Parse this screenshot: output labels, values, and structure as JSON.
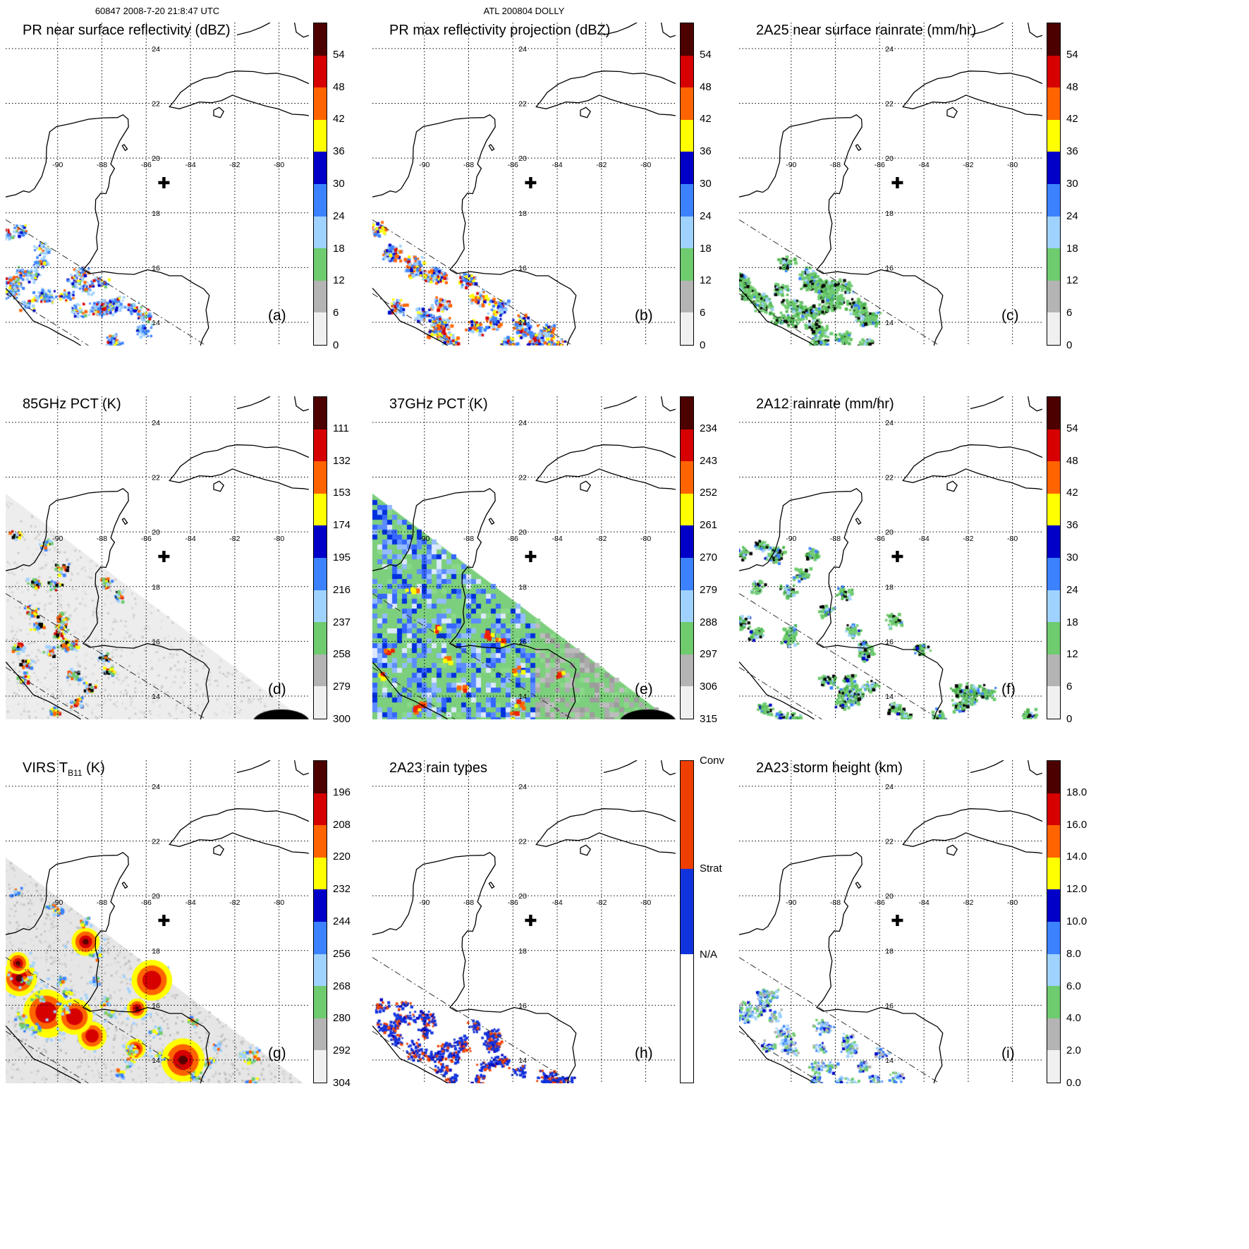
{
  "header": {
    "left_stamp": "60847 2008-7-20 21:8:47 UTC",
    "center_stamp": "ATL 200804 DOLLY"
  },
  "map": {
    "lon_range": [
      -92.35,
      -78.65
    ],
    "lat_range": [
      13.15,
      24.95
    ],
    "lon_labels": [
      "-90",
      "-88",
      "-86",
      "-84",
      "-82",
      "-80"
    ],
    "lon_values": [
      -90,
      -88,
      -86,
      -84,
      -82,
      -80
    ],
    "lat_labels": [
      "24",
      "22",
      "20",
      "18",
      "16",
      "14"
    ],
    "lat_values": [
      24,
      22,
      20,
      18,
      16,
      14
    ],
    "cross_marker": {
      "lon": -85.2,
      "lat": 19.1
    }
  },
  "colors": {
    "scale_top_to_bottom": [
      "#4d0000",
      "#d60000",
      "#ff6400",
      "#ffff00",
      "#0000c8",
      "#3c82ff",
      "#a0d2ff",
      "#6ecb6e",
      "#b4b4b4",
      "#f0f0f0"
    ],
    "conv": "#ee3f00",
    "strat": "#1133dd",
    "na": "#ffffff"
  },
  "panels": [
    {
      "id": "a",
      "field": "pr_ns_reflectivity",
      "letter": "(a)",
      "title": "PR near surface reflectivity (dBZ)",
      "cbar": {
        "type": "scale",
        "labels": [
          "54",
          "48",
          "42",
          "36",
          "30",
          "24",
          "18",
          "12",
          "6",
          "0"
        ]
      }
    },
    {
      "id": "b",
      "field": "pr_max_reflectivity",
      "letter": "(b)",
      "title": "PR max reflectivity projection (dBZ)",
      "cbar": {
        "type": "scale",
        "labels": [
          "54",
          "48",
          "42",
          "36",
          "30",
          "24",
          "18",
          "12",
          "6",
          "0"
        ]
      }
    },
    {
      "id": "c",
      "field": "rainrate_2a25",
      "letter": "(c)",
      "title": "2A25 near surface rainrate (mm/hr)",
      "cbar": {
        "type": "scale",
        "labels": [
          "54",
          "48",
          "42",
          "36",
          "30",
          "24",
          "18",
          "12",
          "6",
          "0"
        ]
      }
    },
    {
      "id": "d",
      "field": "pct85",
      "letter": "(d)",
      "title": "85GHz PCT (K)",
      "cbar": {
        "type": "scale",
        "labels": [
          "111",
          "132",
          "153",
          "174",
          "195",
          "216",
          "237",
          "258",
          "279",
          "300"
        ]
      }
    },
    {
      "id": "e",
      "field": "pct37",
      "letter": "(e)",
      "title": "37GHz PCT (K)",
      "cbar": {
        "type": "scale",
        "labels": [
          "234",
          "243",
          "252",
          "261",
          "270",
          "279",
          "288",
          "297",
          "306",
          "315"
        ]
      }
    },
    {
      "id": "f",
      "field": "rainrate_2a12",
      "letter": "(f)",
      "title": "2A12 rainrate (mm/hr)",
      "cbar": {
        "type": "scale",
        "labels": [
          "54",
          "48",
          "42",
          "36",
          "30",
          "24",
          "18",
          "12",
          "6",
          "0"
        ]
      }
    },
    {
      "id": "g",
      "field": "virs_tb11",
      "letter": "(g)",
      "title_parts": {
        "pre": "VIRS T",
        "sub": "B11",
        "post": " (K)"
      },
      "cbar": {
        "type": "scale",
        "labels": [
          "196",
          "208",
          "220",
          "232",
          "244",
          "256",
          "268",
          "280",
          "292",
          "304"
        ]
      }
    },
    {
      "id": "h",
      "field": "rain_types",
      "letter": "(h)",
      "title": "2A23 rain types",
      "cbar": {
        "type": "ratio",
        "segments": [
          {
            "color": "#ee3f00",
            "to": 0.335
          },
          {
            "color": "#1133dd",
            "to": 0.6
          },
          {
            "color": "#ffffff",
            "to": 1.0
          }
        ],
        "labels": [
          {
            "text": "Conv",
            "at": 0.0
          },
          {
            "text": "Strat",
            "at": 0.335
          },
          {
            "text": "N/A",
            "at": 0.6
          }
        ]
      }
    },
    {
      "id": "i",
      "field": "storm_height",
      "letter": "(i)",
      "title": "2A23 storm height (km)",
      "cbar": {
        "type": "scale",
        "labels": [
          "18.0",
          "16.0",
          "14.0",
          "12.0",
          "10.0",
          "8.0",
          "6.0",
          "4.0",
          "2.0",
          "0.0"
        ]
      }
    }
  ],
  "chart_data": [
    {
      "panel": "a",
      "type": "heatmap",
      "title": "PR near surface reflectivity (dBZ)",
      "units": "dBZ",
      "colorbar_ticks": [
        54,
        48,
        42,
        36,
        30,
        24,
        18,
        12,
        6,
        0
      ],
      "colorbar_colors_top_to_bottom": [
        "#4d0000",
        "#d60000",
        "#ff6400",
        "#ffff00",
        "#0000c8",
        "#3c82ff",
        "#a0d2ff",
        "#6ecb6e",
        "#b4b4b4",
        "#f0f0f0"
      ],
      "coverage": "narrow PR swath, lower-left of map",
      "geo_extent": {
        "lon": [
          -92.35,
          -78.65
        ],
        "lat": [
          13.15,
          24.95
        ]
      },
      "storm_marker": {
        "lon": -85.2,
        "lat": 19.1
      }
    },
    {
      "panel": "b",
      "type": "heatmap",
      "title": "PR max reflectivity projection (dBZ)",
      "units": "dBZ",
      "colorbar_ticks": [
        54,
        48,
        42,
        36,
        30,
        24,
        18,
        12,
        6,
        0
      ],
      "coverage": "narrow PR swath, lower-left of map"
    },
    {
      "panel": "c",
      "type": "heatmap",
      "title": "2A25 near surface rainrate (mm/hr)",
      "units": "mm/hr",
      "colorbar_ticks": [
        54,
        48,
        42,
        36,
        30,
        24,
        18,
        12,
        6,
        0
      ],
      "coverage": "narrow PR swath, mostly 0-12 mm/hr (green) cells with contours"
    },
    {
      "panel": "d",
      "type": "heatmap",
      "title": "85GHz PCT (K)",
      "units": "K",
      "colorbar_ticks": [
        111,
        132,
        153,
        174,
        195,
        216,
        237,
        258,
        279,
        300
      ],
      "value_direction": "values increase downward on colorbar",
      "coverage": "wide TMI swath (light gray background) with scattered cold convective cells on west side"
    },
    {
      "panel": "e",
      "type": "heatmap",
      "title": "37GHz PCT (K)",
      "units": "K",
      "colorbar_ticks": [
        234,
        243,
        252,
        261,
        270,
        279,
        288,
        297,
        306,
        315
      ],
      "value_direction": "values increase downward on colorbar",
      "coverage": "wide TMI swath filled: green ~288 K with blue (cooler) mottling and few yellow/red cold cores"
    },
    {
      "panel": "f",
      "type": "heatmap",
      "title": "2A12 rainrate (mm/hr)",
      "units": "mm/hr",
      "colorbar_ticks": [
        54,
        48,
        42,
        36,
        30,
        24,
        18,
        12,
        6,
        0
      ],
      "coverage": "TMI swath, green rain cells with blue/black cores"
    },
    {
      "panel": "g",
      "type": "heatmap",
      "title": "VIRS T_B11 (K)",
      "units": "K",
      "colorbar_ticks": [
        196,
        208,
        220,
        232,
        244,
        256,
        268,
        280,
        292,
        304
      ],
      "value_direction": "values increase downward on colorbar",
      "coverage": "wide VIRS swath, gray warm background with large red/orange cold cloud tops ringed in yellow/blue"
    },
    {
      "panel": "h",
      "type": "categorical-map",
      "title": "2A23 rain types",
      "categories": [
        "Conv",
        "Strat",
        "N/A"
      ],
      "category_colors": [
        "#ee3f00",
        "#1133dd",
        "#ffffff"
      ],
      "coverage": "narrow PR swath, mostly stratiform (blue) with scattered convective (red) pixels"
    },
    {
      "panel": "i",
      "type": "heatmap",
      "title": "2A23 storm height (km)",
      "units": "km",
      "colorbar_ticks": [
        18,
        16,
        14,
        12,
        10,
        8,
        6,
        4,
        2,
        0
      ],
      "coverage": "narrow PR swath, storm heights mostly 4-10 km (green/light blue/blue)"
    }
  ]
}
